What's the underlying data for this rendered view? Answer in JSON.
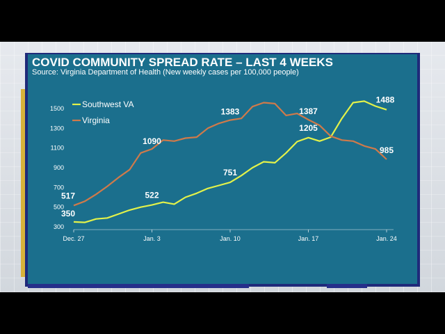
{
  "colors": {
    "panel": "#1b6f8d",
    "southwest_va": "#e3f24a",
    "virginia": "#d07a4a",
    "accent_yellow": "#d7b23a",
    "accent_blue": "#262f8a"
  },
  "chart_data": {
    "type": "line",
    "title": "COVID COMMUNITY SPREAD RATE – LAST 4 WEEKS",
    "subtitle": "Source: Virginia Department of Health (New weekly cases per 100,000 people)",
    "xlabel": "",
    "ylabel": "",
    "ylim": [
      300,
      1600
    ],
    "yticks": [
      "1500",
      "1300",
      "1100",
      "900",
      "700",
      "500",
      "300"
    ],
    "ytick_values": [
      1500,
      1300,
      1100,
      900,
      700,
      500,
      300
    ],
    "xticks": [
      {
        "label": "Dec. 27",
        "index": 0
      },
      {
        "label": "Jan. 3",
        "index": 7
      },
      {
        "label": "Jan. 10",
        "index": 14
      },
      {
        "label": "Jan. 17",
        "index": 21
      },
      {
        "label": "Jan. 24",
        "index": 28
      }
    ],
    "grid": false,
    "legend_position": "top-left",
    "series": [
      {
        "name": "Southwest VA",
        "color": "#e3f24a",
        "values": [
          350,
          345,
          380,
          390,
          430,
          470,
          500,
          522,
          550,
          530,
          600,
          640,
          690,
          720,
          751,
          820,
          900,
          960,
          950,
          1050,
          1165,
          1205,
          1170,
          1210,
          1400,
          1560,
          1575,
          1525,
          1488
        ],
        "labels": [
          {
            "index": 0,
            "text": "350"
          },
          {
            "index": 7,
            "text": "522"
          },
          {
            "index": 14,
            "text": "751"
          },
          {
            "index": 21,
            "text": "1205"
          },
          {
            "index": 28,
            "text": "1488"
          }
        ]
      },
      {
        "name": "Virginia",
        "color": "#d07a4a",
        "values": [
          517,
          560,
          630,
          710,
          800,
          880,
          1050,
          1090,
          1180,
          1170,
          1200,
          1210,
          1300,
          1350,
          1383,
          1400,
          1520,
          1560,
          1550,
          1430,
          1450,
          1387,
          1330,
          1220,
          1180,
          1170,
          1120,
          1090,
          985
        ],
        "labels": [
          {
            "index": 0,
            "text": "517"
          },
          {
            "index": 7,
            "text": "1090"
          },
          {
            "index": 14,
            "text": "1383"
          },
          {
            "index": 21,
            "text": "1387"
          },
          {
            "index": 28,
            "text": "985"
          }
        ]
      }
    ]
  }
}
